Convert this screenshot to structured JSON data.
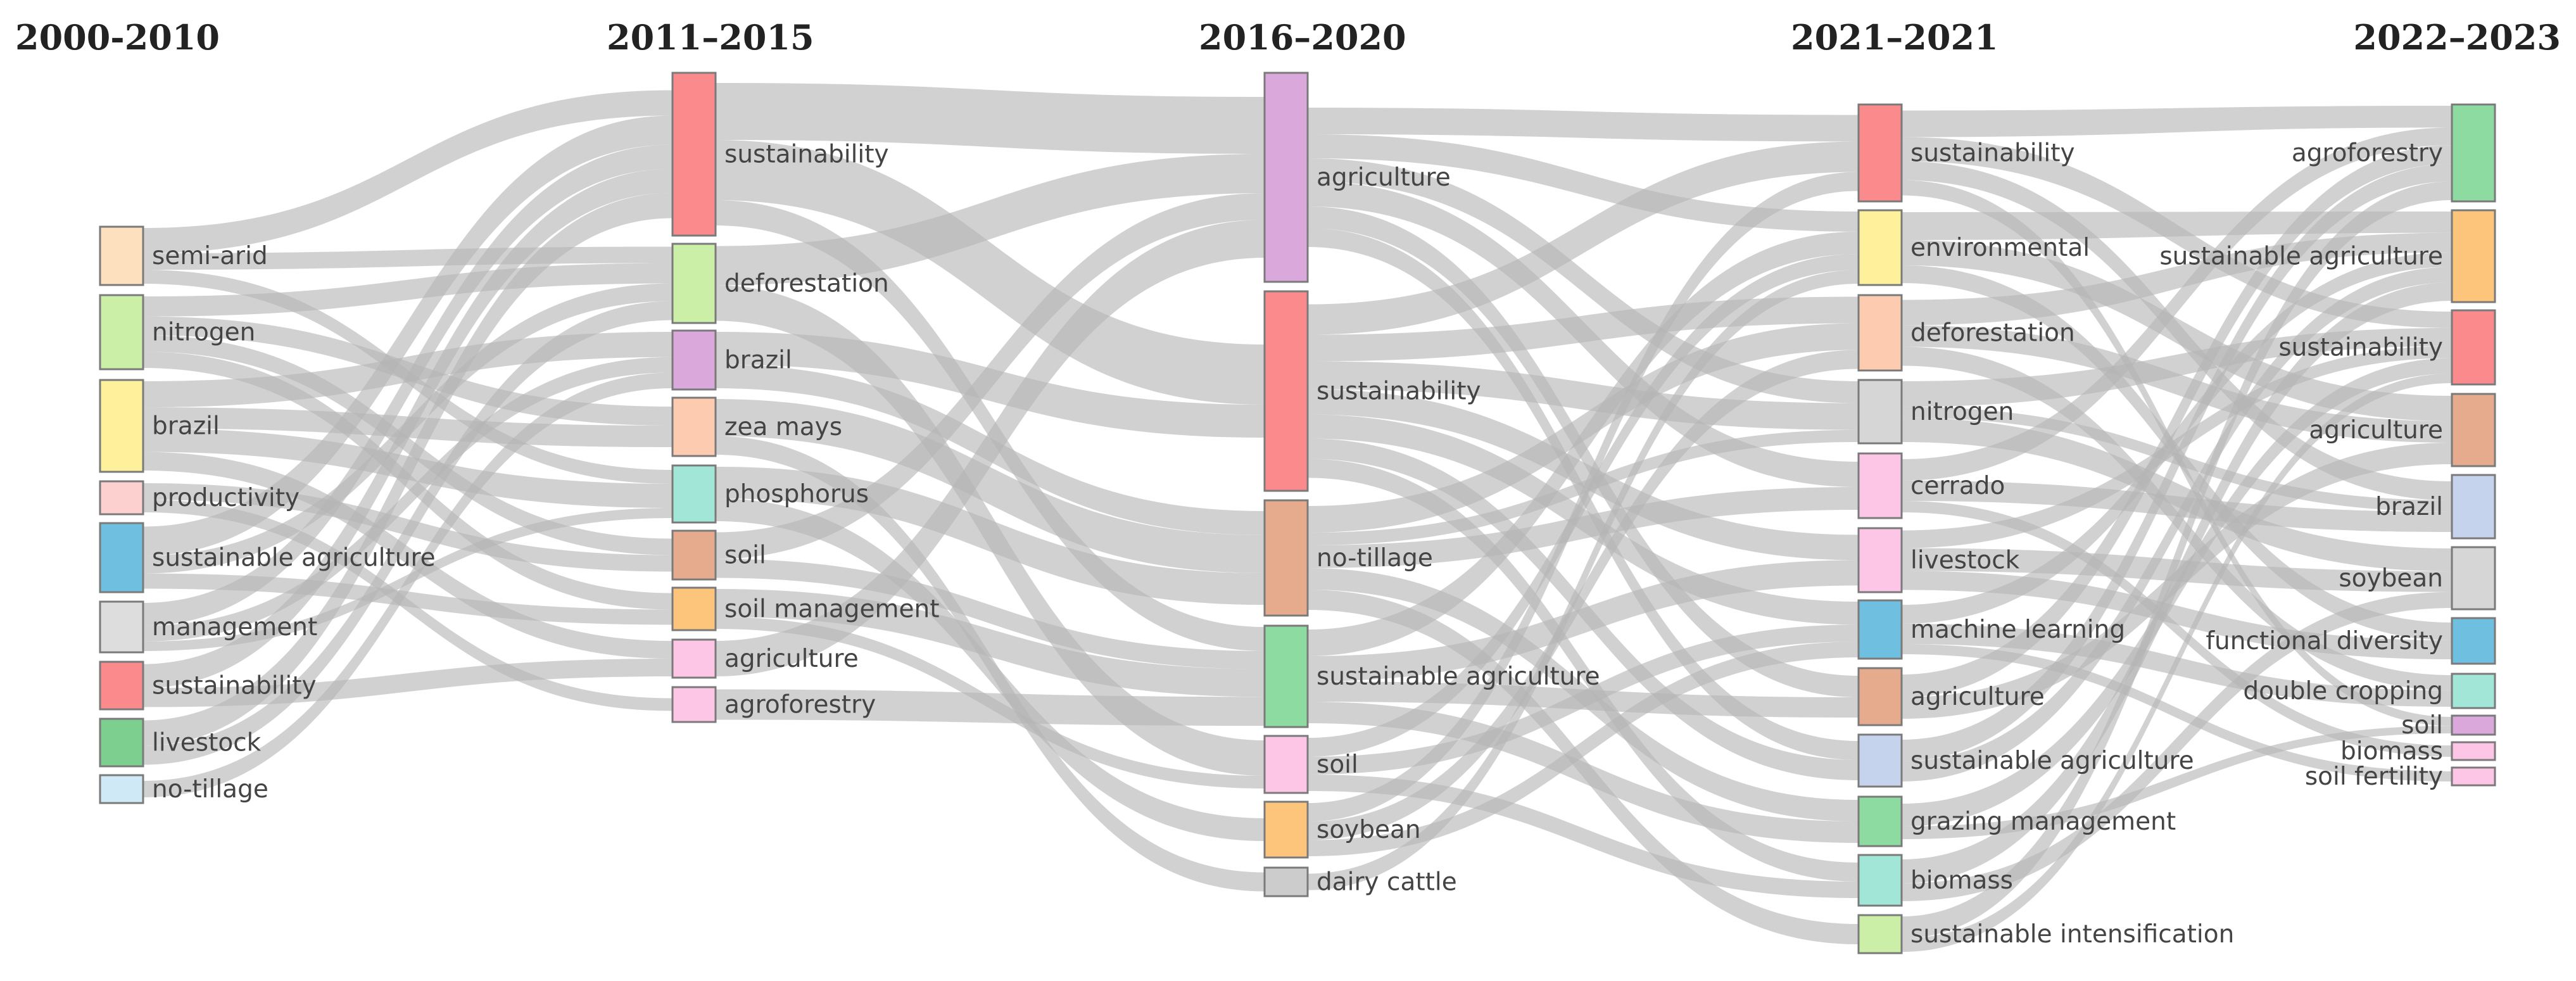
{
  "periods": [
    "2000-2010",
    "2011–2015",
    "2016–2020",
    "2021–2021",
    "2022–2023"
  ],
  "columns": [
    [
      {
        "label": "semi-arid",
        "color": "#fde0bd"
      },
      {
        "label": "nitrogen",
        "color": "#ccefa8"
      },
      {
        "label": "brazil",
        "color": "#fff19c"
      },
      {
        "label": "productivity",
        "color": "#fdd0d0"
      },
      {
        "label": "sustainable agriculture",
        "color": "#6fbfe0"
      },
      {
        "label": "management",
        "color": "#dddddd"
      },
      {
        "label": "sustainability",
        "color": "#fb8a8d"
      },
      {
        "label": "livestock",
        "color": "#7dcf8f"
      },
      {
        "label": "no-tillage",
        "color": "#cfeaf6"
      }
    ],
    [
      {
        "label": "sustainability",
        "color": "#fb8a8d"
      },
      {
        "label": "deforestation",
        "color": "#ccefa8"
      },
      {
        "label": "brazil",
        "color": "#dba8dc"
      },
      {
        "label": "zea mays",
        "color": "#fdcbb0"
      },
      {
        "label": "phosphorus",
        "color": "#a2e6d8"
      },
      {
        "label": "soil",
        "color": "#e6ab8d"
      },
      {
        "label": "soil management",
        "color": "#fdc47c"
      },
      {
        "label": "agriculture",
        "color": "#fdc6e6"
      },
      {
        "label": "agroforestry",
        "color": "#fdc6e6"
      }
    ],
    [
      {
        "label": "agriculture",
        "color": "#dba8dc"
      },
      {
        "label": "sustainability",
        "color": "#fb8a8d"
      },
      {
        "label": "no-tillage",
        "color": "#e6ab8d"
      },
      {
        "label": "sustainable agriculture",
        "color": "#8ddba0"
      },
      {
        "label": "soil",
        "color": "#fdc6e6"
      },
      {
        "label": "soybean",
        "color": "#fdc47c"
      },
      {
        "label": "dairy cattle",
        "color": "#cccccc"
      }
    ],
    [
      {
        "label": "sustainability",
        "color": "#fb8a8d"
      },
      {
        "label": "environmental",
        "color": "#fff19c"
      },
      {
        "label": "deforestation",
        "color": "#fdcbb0"
      },
      {
        "label": "nitrogen",
        "color": "#d6d6d6"
      },
      {
        "label": "cerrado",
        "color": "#fdc6e6"
      },
      {
        "label": "livestock",
        "color": "#fdc6e6"
      },
      {
        "label": "machine learning",
        "color": "#6fbfe0"
      },
      {
        "label": "agriculture",
        "color": "#e6ab8d"
      },
      {
        "label": "sustainable agriculture",
        "color": "#c5d3ec"
      },
      {
        "label": "grazing management",
        "color": "#8ddba0"
      },
      {
        "label": "biomass",
        "color": "#a2e6d8"
      },
      {
        "label": "sustainable intensification",
        "color": "#ccefa8"
      }
    ],
    [
      {
        "label": "agroforestry",
        "color": "#8ddba0"
      },
      {
        "label": "sustainable agriculture",
        "color": "#fdc47c"
      },
      {
        "label": "sustainability",
        "color": "#fb8a8d"
      },
      {
        "label": "agriculture",
        "color": "#e6ab8d"
      },
      {
        "label": "brazil",
        "color": "#c5d3ec"
      },
      {
        "label": "soybean",
        "color": "#d6d6d6"
      },
      {
        "label": "functional diversity",
        "color": "#6fbfe0"
      },
      {
        "label": "double cropping",
        "color": "#a2e6d8"
      },
      {
        "label": "soil",
        "color": "#dba8dc"
      },
      {
        "label": "biomass",
        "color": "#fdc6e6"
      },
      {
        "label": "soil fertility",
        "color": "#fdc6e6"
      }
    ]
  ]
}
